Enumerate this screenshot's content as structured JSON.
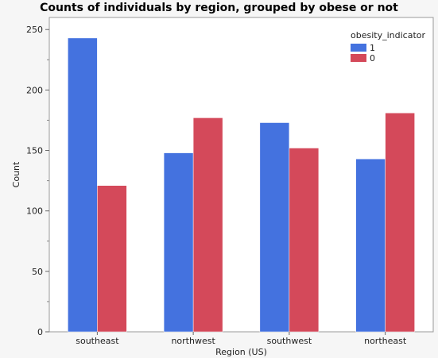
{
  "chart_data": {
    "type": "bar",
    "title": "Counts of individuals by region, grouped by obese or not",
    "xlabel": "Region (US)",
    "ylabel": "Count",
    "categories": [
      "southeast",
      "northwest",
      "southwest",
      "northeast"
    ],
    "series": [
      {
        "name": "1",
        "color": "#4472df",
        "values": [
          243,
          148,
          173,
          143
        ]
      },
      {
        "name": "0",
        "color": "#d4495a",
        "values": [
          121,
          177,
          152,
          181
        ]
      }
    ],
    "ylim": [
      0,
      260
    ],
    "yticks": [
      0,
      50,
      100,
      150,
      200,
      250
    ],
    "legend_title": "obesity_indicator",
    "legend_position": "top-right",
    "grid": false
  }
}
